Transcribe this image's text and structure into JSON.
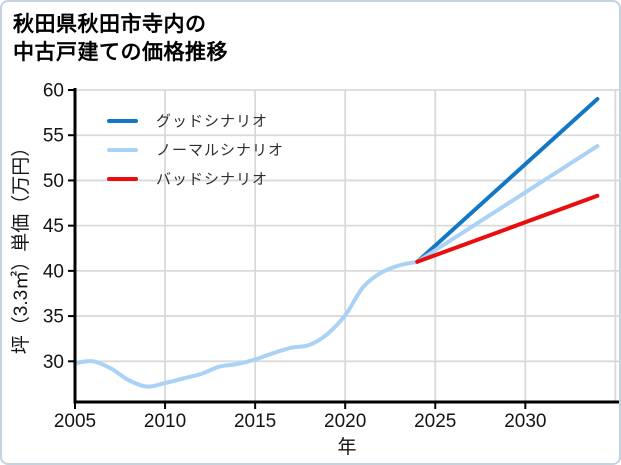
{
  "figure": {
    "background": "#ffffff",
    "border_color": "#c5d3e0"
  },
  "chart_data": {
    "type": "line",
    "title": "秋田県秋田市寺内の中古戸建ての価格推移",
    "title_lines": [
      "秋田県秋田市寺内の",
      "中古戸建ての価格推移"
    ],
    "xlabel": "年",
    "ylabel": "坪（3.3㎡）単価（万円）",
    "x_ticks": [
      2005,
      2010,
      2015,
      2020,
      2025,
      2030
    ],
    "y_ticks": [
      30,
      35,
      40,
      45,
      50,
      55,
      60
    ],
    "xlim": [
      2005,
      2035.2
    ],
    "ylim": [
      25.5,
      60
    ],
    "grid": true,
    "legend_position": "upper-left",
    "colors": {
      "good": "#1377c4",
      "normal": "#a9d2f5",
      "bad": "#ea0d0d",
      "grid": "#d9d9d9",
      "axis": "#000000",
      "text": "#141414"
    },
    "legend": [
      {
        "label": "グッドシナリオ",
        "color_key": "good"
      },
      {
        "label": "ノーマルシナリオ",
        "color_key": "normal"
      },
      {
        "label": "バッドシナリオ",
        "color_key": "bad"
      }
    ],
    "series": [
      {
        "id": "price-history",
        "color_key": "normal",
        "smooth": true,
        "x": [
          2005,
          2006,
          2007,
          2008,
          2009,
          2010,
          2011,
          2012,
          2013,
          2014,
          2015,
          2016,
          2017,
          2018,
          2019,
          2020,
          2021,
          2022,
          2023,
          2024
        ],
        "y": [
          29.8,
          30.0,
          29.2,
          27.9,
          27.2,
          27.6,
          28.1,
          28.6,
          29.4,
          29.7,
          30.2,
          30.9,
          31.5,
          31.8,
          33.0,
          35.1,
          38.2,
          39.8,
          40.6,
          41.0
        ]
      },
      {
        "id": "good-scenario",
        "label": "グッドシナリオ",
        "color_key": "good",
        "smooth": false,
        "x": [
          2024,
          2034
        ],
        "y": [
          41.0,
          59.0
        ]
      },
      {
        "id": "normal-scenario",
        "label": "ノーマルシナリオ",
        "color_key": "normal",
        "smooth": false,
        "x": [
          2024,
          2034
        ],
        "y": [
          41.0,
          53.8
        ]
      },
      {
        "id": "bad-scenario",
        "label": "バッドシナリオ",
        "color_key": "bad",
        "smooth": false,
        "x": [
          2024,
          2034
        ],
        "y": [
          41.0,
          48.3
        ]
      }
    ]
  }
}
